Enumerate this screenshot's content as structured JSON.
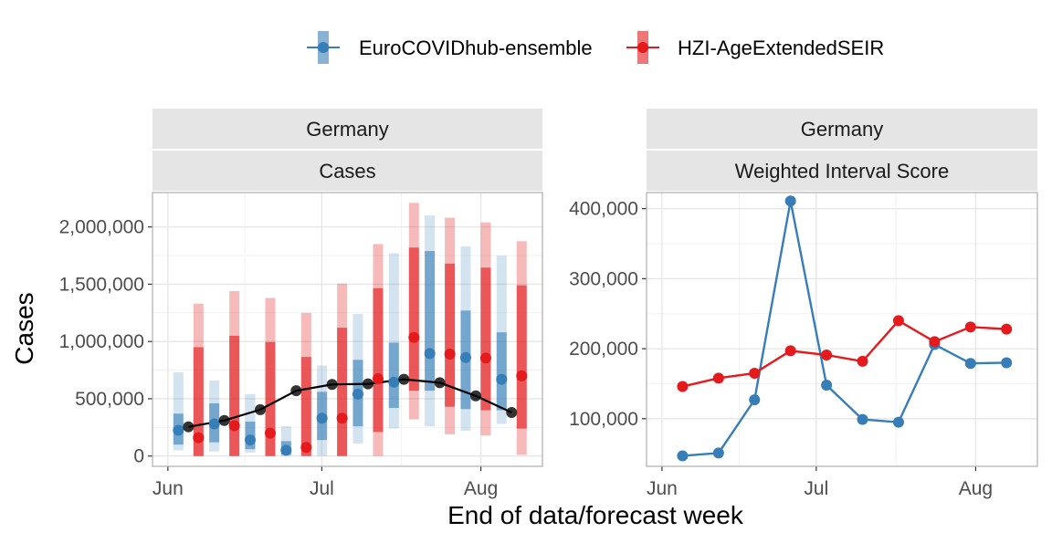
{
  "colors": {
    "blue": "#377eb8",
    "red": "#e41a1c",
    "black": "#000000",
    "strip_bg": "#e5e5e5",
    "grid": "#ebebeb",
    "axis_text": "#4d4d4d"
  },
  "legend": {
    "items": [
      {
        "label": "EuroCOVIDhub-ensemble",
        "color": "#377eb8"
      },
      {
        "label": "HZI-AgeExtendedSEIR",
        "color": "#e41a1c"
      }
    ]
  },
  "ylabel": "Cases",
  "xlabel": "End of data/forecast week",
  "chart_data": [
    {
      "type": "line",
      "strip": [
        "Germany",
        "Cases"
      ],
      "xlim": [
        "2021-05-29",
        "2021-08-13"
      ],
      "ylim": [
        -90000,
        2300000
      ],
      "yticks": [
        0,
        500000,
        1000000,
        1500000,
        2000000
      ],
      "ytick_labels": [
        "0",
        "500,000",
        "1,000,000",
        "1,500,000",
        "2,000,000"
      ],
      "xticks": [
        "2021-06-01",
        "2021-07-01",
        "2021-08-01"
      ],
      "xtick_labels": [
        "Jun",
        "Jul",
        "Aug"
      ],
      "grid": true,
      "observed": {
        "name": "",
        "x": [
          "2021-06-05",
          "2021-06-12",
          "2021-06-19",
          "2021-06-26",
          "2021-07-03",
          "2021-07-10",
          "2021-07-17",
          "2021-07-24",
          "2021-07-31",
          "2021-08-07"
        ],
        "y": [
          255000,
          310000,
          405000,
          570000,
          625000,
          630000,
          670000,
          640000,
          525000,
          380000
        ]
      },
      "series": [
        {
          "name": "EuroCOVIDhub-ensemble",
          "color": "#377eb8",
          "x": [
            "2021-06-05",
            "2021-06-12",
            "2021-06-19",
            "2021-06-26",
            "2021-07-03",
            "2021-07-10",
            "2021-07-17",
            "2021-07-24",
            "2021-07-31",
            "2021-08-07"
          ],
          "median": [
            225000,
            280000,
            140000,
            50000,
            330000,
            540000,
            645000,
            895000,
            860000,
            670000
          ],
          "inner": [
            [
              100000,
              370000
            ],
            [
              120000,
              460000
            ],
            [
              60000,
              300000
            ],
            [
              10000,
              130000
            ],
            [
              140000,
              560000
            ],
            [
              260000,
              840000
            ],
            [
              420000,
              990000
            ],
            [
              570000,
              1790000
            ],
            [
              410000,
              1270000
            ],
            [
              400000,
              1080000
            ]
          ],
          "outer": [
            [
              50000,
              730000
            ],
            [
              40000,
              660000
            ],
            [
              30000,
              540000
            ],
            [
              0,
              260000
            ],
            [
              0,
              790000
            ],
            [
              110000,
              1240000
            ],
            [
              240000,
              1770000
            ],
            [
              260000,
              2100000
            ],
            [
              220000,
              1830000
            ],
            [
              280000,
              1750000
            ]
          ]
        },
        {
          "name": "HZI-AgeExtendedSEIR",
          "color": "#e41a1c",
          "x": [
            "2021-06-05",
            "2021-06-12",
            "2021-06-19",
            "2021-06-26",
            "2021-07-03",
            "2021-07-10",
            "2021-07-17",
            "2021-07-24",
            "2021-07-31",
            "2021-08-07"
          ],
          "median": [
            160000,
            265000,
            200000,
            75000,
            330000,
            675000,
            1035000,
            890000,
            855000,
            700000
          ],
          "inner": [
            [
              0,
              950000
            ],
            [
              0,
              1050000
            ],
            [
              0,
              995000
            ],
            [
              0,
              865000
            ],
            [
              0,
              1120000
            ],
            [
              210000,
              1465000
            ],
            [
              570000,
              1820000
            ],
            [
              430000,
              1680000
            ],
            [
              400000,
              1645000
            ],
            [
              240000,
              1490000
            ]
          ],
          "outer": [
            [
              0,
              1330000
            ],
            [
              0,
              1440000
            ],
            [
              0,
              1380000
            ],
            [
              0,
              1250000
            ],
            [
              0,
              1505000
            ],
            [
              0,
              1850000
            ],
            [
              320000,
              2210000
            ],
            [
              190000,
              2080000
            ],
            [
              180000,
              2040000
            ],
            [
              10000,
              1875000
            ]
          ]
        }
      ]
    },
    {
      "type": "line",
      "strip": [
        "Germany",
        "Weighted Interval Score"
      ],
      "xlim": [
        "2021-05-29",
        "2021-08-13"
      ],
      "ylim": [
        32000,
        423000
      ],
      "yticks": [
        100000,
        200000,
        300000,
        400000
      ],
      "ytick_labels": [
        "100,000",
        "200,000",
        "300,000",
        "400,000"
      ],
      "xticks": [
        "2021-06-01",
        "2021-07-01",
        "2021-08-01"
      ],
      "xtick_labels": [
        "Jun",
        "Jul",
        "Aug"
      ],
      "grid": true,
      "series": [
        {
          "name": "EuroCOVIDhub-ensemble",
          "color": "#377eb8",
          "x": [
            "2021-06-05",
            "2021-06-12",
            "2021-06-19",
            "2021-06-26",
            "2021-07-03",
            "2021-07-10",
            "2021-07-17",
            "2021-07-24",
            "2021-07-31",
            "2021-08-07"
          ],
          "y": [
            47000,
            51000,
            127000,
            411000,
            148000,
            99000,
            95000,
            206000,
            179000,
            180000
          ]
        },
        {
          "name": "HZI-AgeExtendedSEIR",
          "color": "#e41a1c",
          "x": [
            "2021-06-05",
            "2021-06-12",
            "2021-06-19",
            "2021-06-26",
            "2021-07-03",
            "2021-07-10",
            "2021-07-17",
            "2021-07-24",
            "2021-07-31",
            "2021-08-07"
          ],
          "y": [
            146000,
            158000,
            165000,
            197000,
            191000,
            182000,
            240000,
            210000,
            231000,
            228000
          ]
        }
      ]
    }
  ]
}
